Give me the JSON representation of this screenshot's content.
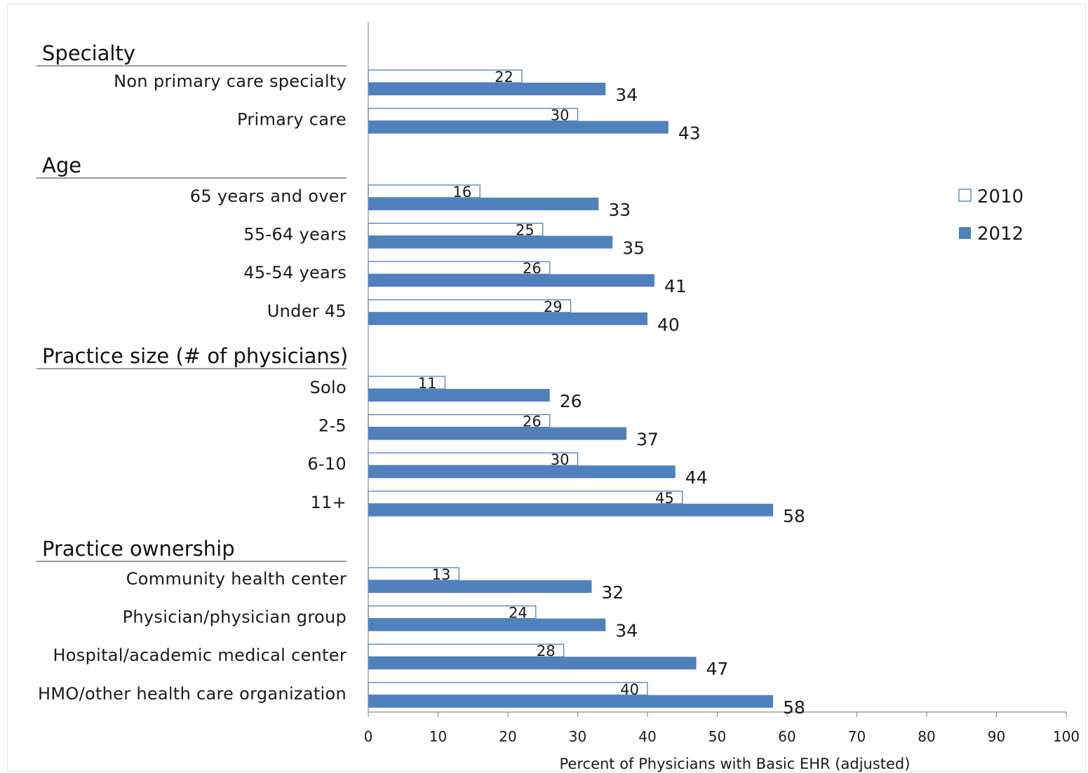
{
  "chart_data": {
    "type": "bar",
    "orientation": "horizontal",
    "xlabel": "Percent of Physicians with Basic EHR (adjusted)",
    "xlim": [
      0,
      100
    ],
    "xticks": [
      0,
      10,
      20,
      30,
      40,
      50,
      60,
      70,
      80,
      90,
      100
    ],
    "legend": {
      "placement": "right",
      "entries": [
        "2010",
        "2012"
      ]
    },
    "colors": {
      "2010": "#ffffff",
      "2012": "#4f81bd",
      "outline": "#4f81bd"
    },
    "series": [
      {
        "name": "2010"
      },
      {
        "name": "2012"
      }
    ],
    "groups": [
      {
        "title": "Specialty",
        "categories": [
          {
            "label": "Non primary care specialty",
            "v2010": 22,
            "v2012": 34
          },
          {
            "label": "Primary care",
            "v2010": 30,
            "v2012": 43
          }
        ]
      },
      {
        "title": "Age",
        "categories": [
          {
            "label": "65 years and over",
            "v2010": 16,
            "v2012": 33
          },
          {
            "label": "55-64 years",
            "v2010": 25,
            "v2012": 35
          },
          {
            "label": "45-54 years",
            "v2010": 26,
            "v2012": 41
          },
          {
            "label": "Under 45",
            "v2010": 29,
            "v2012": 40
          }
        ]
      },
      {
        "title": "Practice size (# of physicians)",
        "categories": [
          {
            "label": "Solo",
            "v2010": 11,
            "v2012": 26
          },
          {
            "label": "2-5",
            "v2010": 26,
            "v2012": 37
          },
          {
            "label": "6-10",
            "v2010": 30,
            "v2012": 44
          },
          {
            "label": "11+",
            "v2010": 45,
            "v2012": 58
          }
        ]
      },
      {
        "title": "Practice ownership",
        "categories": [
          {
            "label": "Community health center",
            "v2010": 13,
            "v2012": 32
          },
          {
            "label": "Physician/physician group",
            "v2010": 24,
            "v2012": 34
          },
          {
            "label": "Hospital/academic medical center",
            "v2010": 28,
            "v2012": 47
          },
          {
            "label": "HMO/other health care organization",
            "v2010": 40,
            "v2012": 58
          }
        ]
      }
    ]
  }
}
